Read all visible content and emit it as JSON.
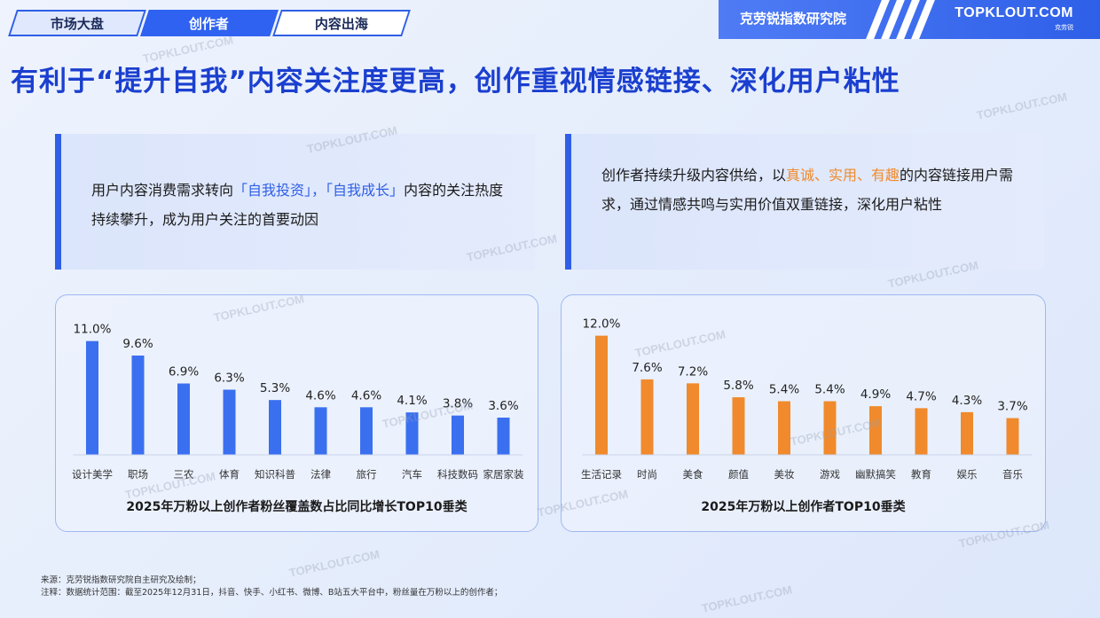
{
  "nav": {
    "tabs": [
      {
        "label": "市场大盘"
      },
      {
        "label": "创作者"
      },
      {
        "label": "内容出海"
      }
    ],
    "institute": "克劳锐指数研究院",
    "logo": "TOPKLOUT.COM",
    "logo_sub": "克劳锐"
  },
  "headline": "有利于“提升自我”内容关注度更高，创作重视情感链接、深化用户粘性",
  "left_card": {
    "before": "用户内容消费需求转向",
    "hl1": "「自我投资」",
    "sep": "，",
    "hl2": "「自我成长」",
    "after": "内容的关注热度持续攀升，成为用户关注的首要动因"
  },
  "right_card": {
    "before": "创作者持续升级内容供给，以",
    "hl": "真诚、实用、有趣",
    "after": "的内容链接用户需求，通过情感共鸣与实用价值双重链接，深化用户粘性"
  },
  "chart_data": [
    {
      "type": "bar",
      "title": "2025年万粉以上创作者粉丝覆盖数占比同比增长TOP10垂类",
      "categories": [
        "设计美学",
        "职场",
        "三农",
        "体育",
        "知识科普",
        "法律",
        "旅行",
        "汽车",
        "科技数码",
        "家居家装"
      ],
      "values": [
        11.0,
        9.6,
        6.9,
        6.3,
        5.3,
        4.6,
        4.6,
        4.1,
        3.8,
        3.6
      ],
      "value_labels": [
        "11.0%",
        "9.6%",
        "6.9%",
        "6.3%",
        "5.3%",
        "4.6%",
        "4.6%",
        "4.1%",
        "3.8%",
        "3.6%"
      ],
      "color": "#3a6ff0",
      "ylim": [
        0,
        12
      ]
    },
    {
      "type": "bar",
      "title": "2025年万粉以上创作者TOP10垂类",
      "categories": [
        "生活记录",
        "时尚",
        "美食",
        "颜值",
        "美妆",
        "游戏",
        "幽默搞笑",
        "教育",
        "娱乐",
        "音乐"
      ],
      "values": [
        12.0,
        7.6,
        7.2,
        5.8,
        5.4,
        5.4,
        4.9,
        4.7,
        4.3,
        3.7
      ],
      "value_labels": [
        "12.0%",
        "7.6%",
        "7.2%",
        "5.8%",
        "5.4%",
        "5.4%",
        "4.9%",
        "4.7%",
        "4.3%",
        "3.7%"
      ],
      "color": "#f08a2c",
      "ylim": [
        0,
        12.5
      ]
    }
  ],
  "footer": {
    "source": "来源：克劳锐指数研究院自主研究及绘制；",
    "note": "注释：数据统计范围：截至2025年12月31日，抖音、快手、小红书、微博、B站五大平台中，粉丝量在万粉以上的创作者；"
  },
  "watermark": "TOPKLOUT.COM"
}
